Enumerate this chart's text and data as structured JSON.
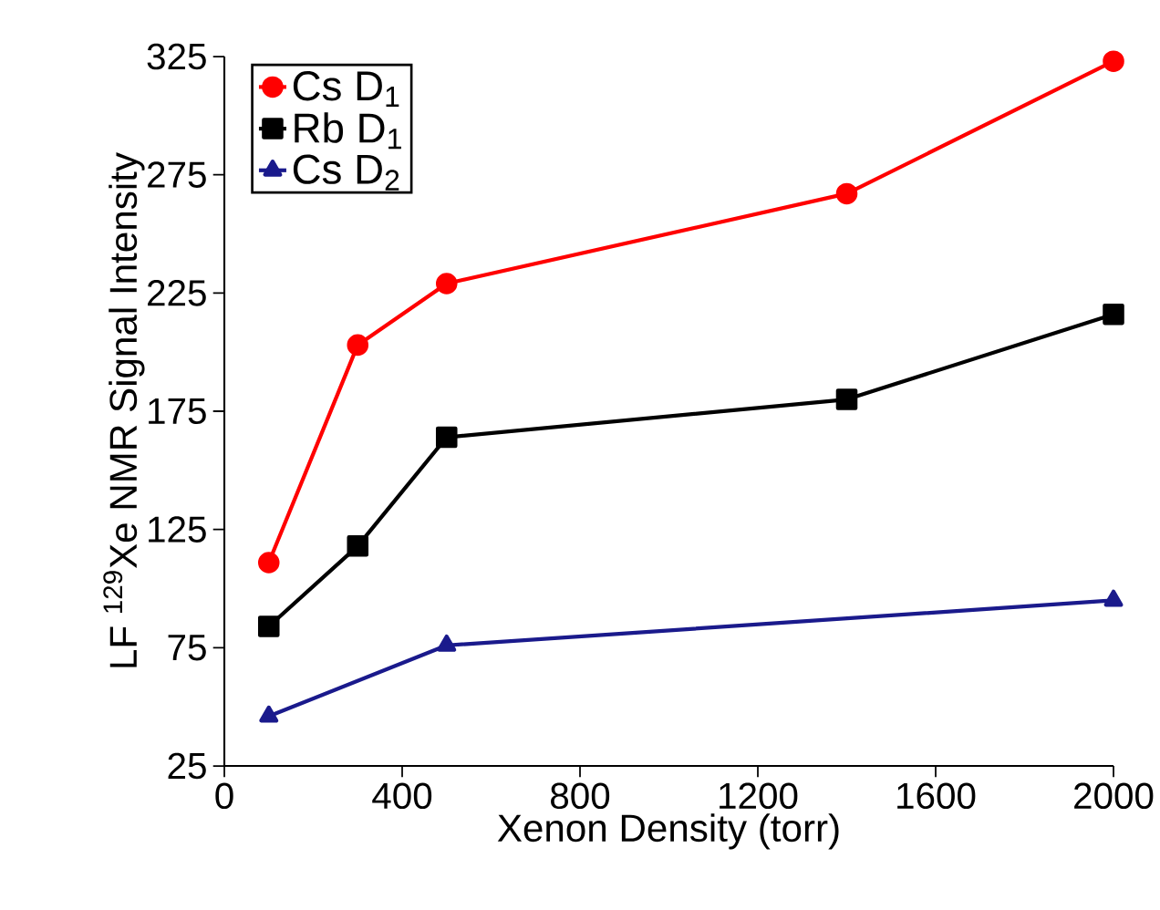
{
  "chart_data": {
    "type": "line",
    "xlabel": "Xenon Density (torr)",
    "ylabel": "LF $^{129}$Xe NMR Signal Intensity",
    "xlim": [
      0,
      2000
    ],
    "xticks": [
      0,
      400,
      800,
      1200,
      1600,
      2000
    ],
    "ylim": [
      25,
      325
    ],
    "yticks": [
      25,
      75,
      125,
      175,
      225,
      275,
      325
    ],
    "legend": "top left",
    "grid": false,
    "series": [
      {
        "name": "Cs D$_{1}$",
        "color": "#ff0000",
        "marker": "circle",
        "x": [
          100,
          300,
          500,
          1400,
          2000
        ],
        "values": [
          111,
          203,
          229,
          267,
          323
        ]
      },
      {
        "name": "Rb D$_{1}$",
        "color": "#000000",
        "marker": "square",
        "x": [
          100,
          300,
          500,
          1400,
          2000
        ],
        "values": [
          84,
          118,
          164,
          180,
          216
        ]
      },
      {
        "name": "Cs D$_{2}$",
        "color": "#1a1a8c",
        "marker": "triangle",
        "x": [
          100,
          500,
          2000
        ],
        "values": [
          46,
          76,
          95
        ]
      }
    ]
  }
}
